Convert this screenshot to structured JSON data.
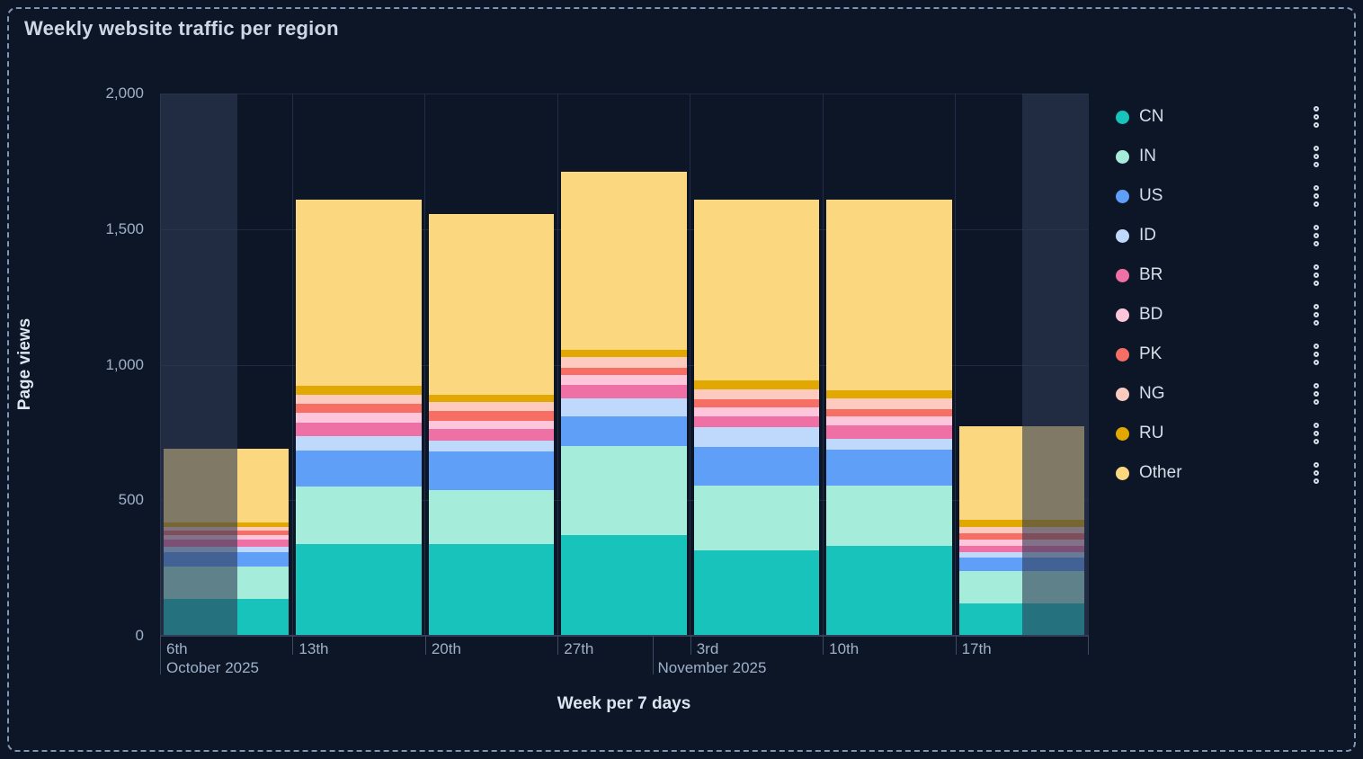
{
  "panel": {
    "title": "Weekly website traffic per region"
  },
  "y_axis": {
    "title": "Page views",
    "tick_labels": [
      "0",
      "500",
      "1,000",
      "1,500",
      "2,000"
    ],
    "tick_values": [
      0,
      500,
      1000,
      1500,
      2000
    ]
  },
  "x_axis": {
    "title": "Week per 7 days",
    "day_labels": [
      "6th",
      "13th",
      "20th",
      "27th",
      "3rd",
      "10th",
      "17th"
    ],
    "month_labels": [
      "October 2025",
      "November 2025"
    ]
  },
  "colors": {
    "background": "#0d1627",
    "border_dash": "#8095b5",
    "gridline": "#1f2a42",
    "fade_overlay": "rgba(47,58,84,0.60)"
  },
  "chart_data": {
    "type": "bar",
    "stacked": true,
    "title": "Weekly website traffic per region",
    "xlabel": "Week per 7 days",
    "ylabel": "Page views",
    "ylim": [
      0,
      2000
    ],
    "grid": true,
    "legend_position": "right",
    "categories": [
      "6th",
      "13th",
      "20th",
      "27th",
      "3rd",
      "10th",
      "17th"
    ],
    "category_months": [
      "October 2025",
      "October 2025",
      "October 2025",
      "October 2025",
      "November 2025",
      "November 2025",
      "November 2025"
    ],
    "series": [
      {
        "name": "CN",
        "color": "#17c3bb",
        "values": [
          135,
          340,
          340,
          370,
          316,
          331,
          120
        ]
      },
      {
        "name": "IN",
        "color": "#a5ecdb",
        "values": [
          120,
          212,
          197,
          330,
          238,
          223,
          119
        ]
      },
      {
        "name": "US",
        "color": "#5f9ff8",
        "values": [
          55,
          131,
          142,
          110,
          144,
          133,
          49
        ]
      },
      {
        "name": "ID",
        "color": "#bfd9fd",
        "values": [
          18,
          52,
          41,
          67,
          72,
          38,
          20
        ]
      },
      {
        "name": "BR",
        "color": "#ef70a5",
        "values": [
          26,
          50,
          42,
          50,
          38,
          50,
          25
        ]
      },
      {
        "name": "BD",
        "color": "#fdc6da",
        "values": [
          16,
          37,
          30,
          34,
          35,
          33,
          22
        ]
      },
      {
        "name": "PK",
        "color": "#f66e64",
        "values": [
          17,
          34,
          37,
          27,
          28,
          28,
          22
        ]
      },
      {
        "name": "NG",
        "color": "#fccabe",
        "values": [
          16,
          33,
          35,
          39,
          37,
          39,
          24
        ]
      },
      {
        "name": "RU",
        "color": "#e0a800",
        "values": [
          14,
          34,
          25,
          28,
          35,
          30,
          26
        ]
      },
      {
        "name": "Other",
        "color": "#fbd780",
        "values": [
          272,
          686,
          666,
          655,
          667,
          705,
          345
        ]
      }
    ],
    "totals": [
      689,
      1609,
      1555,
      1710,
      1610,
      1610,
      772
    ],
    "faded_ranges": [
      {
        "category": "6th",
        "part": "left-half",
        "note": "partial week shaded"
      },
      {
        "category": "17th",
        "part": "right-half",
        "note": "partial week shaded"
      }
    ]
  }
}
